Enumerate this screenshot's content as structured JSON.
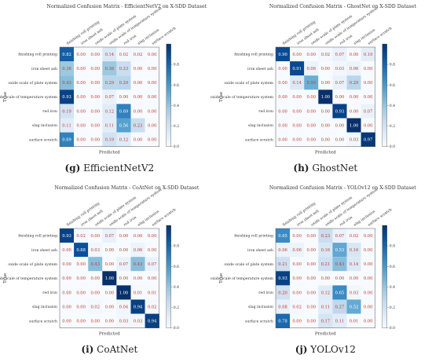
{
  "figure": {
    "panels": [
      {
        "tag": "(g)",
        "name": "EfficientNetV2"
      },
      {
        "tag": "(h)",
        "name": "GhostNet"
      },
      {
        "tag": "(i)",
        "name": "CoAtNet"
      },
      {
        "tag": "(j)",
        "name": "YOLOv12"
      }
    ]
  },
  "chart_data": [
    {
      "type": "heatmap",
      "title": "Normalized Confusion Matrix - EfficientNetV2 on X-SDD Dataset",
      "xlabel": "Predicted",
      "ylabel": "True",
      "categories": [
        "finishing roll printing",
        "iron sheet ash",
        "oxide scale of plate system",
        "oxide scale of temperature system",
        "red iron",
        "slag inclusion",
        "surface scratch"
      ],
      "values": [
        [
          0.82,
          0.0,
          0.0,
          0.14,
          0.02,
          0.02,
          0.0
        ],
        [
          0.38,
          0.0,
          0.0,
          0.38,
          0.23,
          0.0,
          0.0
        ],
        [
          0.43,
          0.0,
          0.0,
          0.29,
          0.29,
          0.0,
          0.0
        ],
        [
          0.93,
          0.0,
          0.0,
          0.07,
          0.0,
          0.0,
          0.0
        ],
        [
          0.19,
          0.0,
          0.0,
          0.12,
          0.69,
          0.0,
          0.0
        ],
        [
          0.11,
          0.0,
          0.0,
          0.11,
          0.56,
          0.23,
          0.0
        ],
        [
          0.69,
          0.0,
          0.0,
          0.19,
          0.12,
          0.0,
          0.0
        ]
      ],
      "colorbar_ticks": [
        0.0,
        0.2,
        0.4,
        0.6,
        0.8
      ]
    },
    {
      "type": "heatmap",
      "title": "Normalized Confusion Matrix - GhostNet on X-SDD Dataset",
      "xlabel": "Predicted",
      "ylabel": "True",
      "categories": [
        "finishing roll printing",
        "iron sheet ash",
        "oxide scale of plate system",
        "oxide scale of temperature system",
        "red iron",
        "slag inclusion",
        "surface scratch"
      ],
      "values": [
        [
          0.9,
          0.0,
          0.0,
          0.02,
          0.07,
          0.0,
          0.1
        ],
        [
          0.0,
          0.91,
          0.06,
          0.0,
          0.03,
          0.06,
          0.0
        ],
        [
          0.0,
          0.14,
          0.5,
          0.0,
          0.07,
          0.29,
          0.0
        ],
        [
          0.0,
          0.0,
          0.0,
          1.0,
          0.0,
          0.0,
          0.0
        ],
        [
          0.0,
          0.0,
          0.0,
          0.0,
          0.93,
          0.0,
          0.07
        ],
        [
          0.0,
          0.0,
          0.0,
          0.0,
          0.0,
          1.0,
          0.0
        ],
        [
          0.0,
          0.0,
          0.0,
          0.0,
          0.0,
          0.03,
          0.97
        ]
      ],
      "colorbar_ticks": [
        0.0,
        0.2,
        0.4,
        0.6,
        0.8
      ]
    },
    {
      "type": "heatmap",
      "title": "Normalized Confusion Matrix - CoAtNet on X-SDD Dataset",
      "xlabel": "Predicted",
      "ylabel": "True",
      "categories": [
        "finishing roll printing",
        "iron sheet ash",
        "oxide scale of plate system",
        "oxide scale of temperature system",
        "red iron",
        "slag inclusion",
        "surface scratch"
      ],
      "values": [
        [
          0.93,
          0.02,
          0.0,
          0.07,
          0.0,
          0.0,
          0.0
        ],
        [
          0.0,
          0.88,
          0.03,
          0.0,
          0.0,
          0.06,
          0.0
        ],
        [
          0.0,
          0.0,
          0.43,
          0.0,
          0.07,
          0.43,
          0.07
        ],
        [
          0.0,
          0.0,
          0.0,
          1.0,
          0.0,
          0.0,
          0.0
        ],
        [
          0.0,
          0.0,
          0.0,
          0.0,
          1.0,
          0.01,
          0.01
        ],
        [
          0.0,
          0.0,
          0.02,
          0.0,
          0.04,
          0.94,
          0.02
        ],
        [
          0.0,
          0.0,
          0.0,
          0.0,
          0.03,
          0.03,
          0.94
        ]
      ],
      "colorbar_ticks": [
        0.0,
        0.2,
        0.4,
        0.6,
        0.8
      ]
    },
    {
      "type": "heatmap",
      "title": "Normalized Confusion Matrix - YOLOv12 on X-SDD Dataset",
      "xlabel": "Predicted",
      "ylabel": "True",
      "categories": [
        "finishing roll printing",
        "iron sheet ash",
        "oxide scale of plate system",
        "oxide scale of temperature system",
        "red iron",
        "slag inclusion",
        "surface scratch"
      ],
      "values": [
        [
          0.65,
          0.0,
          0.0,
          0.23,
          0.07,
          0.02,
          0.0
        ],
        [
          0.06,
          0.06,
          0.0,
          0.16,
          0.53,
          0.16,
          0.0
        ],
        [
          0.21,
          0.0,
          0.0,
          0.21,
          0.43,
          0.14,
          0.0
        ],
        [
          0.93,
          0.0,
          0.0,
          0.0,
          0.0,
          0.0,
          0.0
        ],
        [
          0.2,
          0.0,
          0.0,
          0.12,
          0.65,
          0.03,
          0.0
        ],
        [
          0.08,
          0.02,
          0.0,
          0.11,
          0.27,
          0.52,
          0.0
        ],
        [
          0.78,
          0.0,
          0.0,
          0.17,
          0.11,
          0.01,
          0.0
        ]
      ],
      "colorbar_ticks": [
        0.0,
        0.2,
        0.4,
        0.6,
        0.8
      ]
    }
  ]
}
